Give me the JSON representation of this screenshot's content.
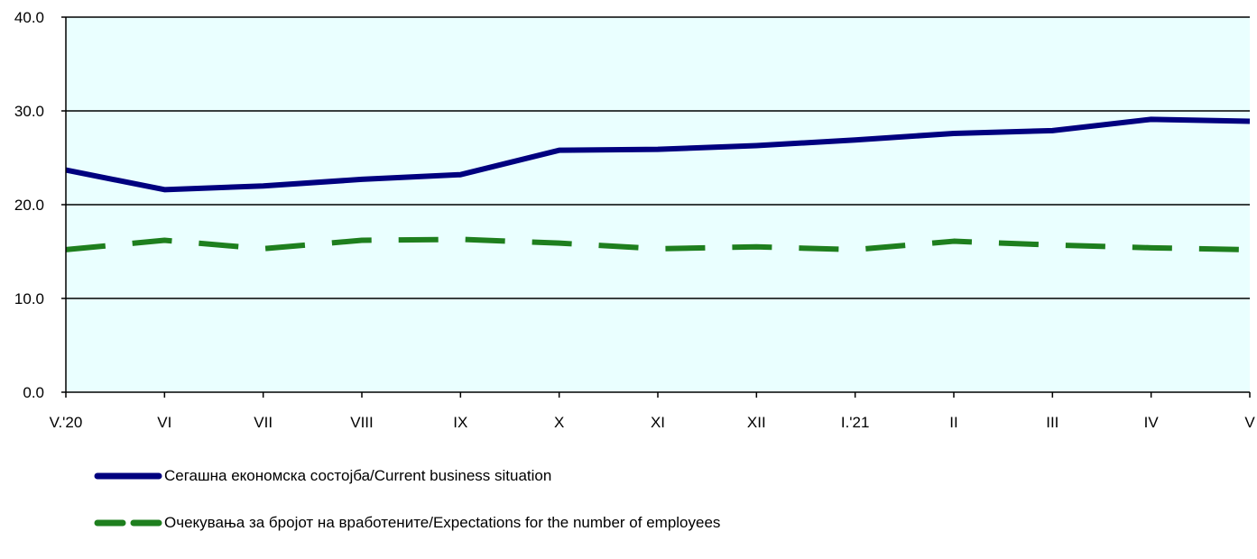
{
  "chart_data": {
    "type": "line",
    "categories": [
      "V.'20",
      "VI",
      "VII",
      "VIII",
      "IX",
      "X",
      "XI",
      "XII",
      "I.'21",
      "II",
      "III",
      "IV",
      "V"
    ],
    "ylim": [
      0,
      40
    ],
    "yticks": [
      "0.0",
      "10.0",
      "20.0",
      "30.0",
      "40.0"
    ],
    "ytick_values": [
      0,
      10,
      20,
      30,
      40
    ],
    "grid": true,
    "plot_background": "#eaffff",
    "legend_position": "bottom-left",
    "series": [
      {
        "name": "Сегашна економска состојба/Current business situation",
        "color": "#00007f",
        "style": "solid",
        "values": [
          23.7,
          21.6,
          22.0,
          22.7,
          23.2,
          25.8,
          25.9,
          26.3,
          26.9,
          27.6,
          27.9,
          29.1,
          28.9
        ]
      },
      {
        "name": "Очекувања за бројот на вработените/Expectations for the number of employees",
        "color": "#1e7f1e",
        "style": "dashed",
        "values": [
          15.2,
          16.2,
          15.3,
          16.2,
          16.3,
          15.9,
          15.3,
          15.5,
          15.2,
          16.1,
          15.7,
          15.4,
          15.2
        ]
      }
    ]
  }
}
